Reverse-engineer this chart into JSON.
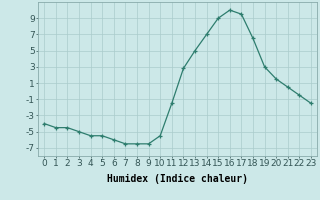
{
  "x": [
    0,
    1,
    2,
    3,
    4,
    5,
    6,
    7,
    8,
    9,
    10,
    11,
    12,
    13,
    14,
    15,
    16,
    17,
    18,
    19,
    20,
    21,
    22,
    23
  ],
  "y": [
    -4.0,
    -4.5,
    -4.5,
    -5.0,
    -5.5,
    -5.5,
    -6.0,
    -6.5,
    -6.5,
    -6.5,
    -5.5,
    -1.5,
    2.8,
    5.0,
    7.0,
    9.0,
    10.0,
    9.5,
    6.5,
    3.0,
    1.5,
    0.5,
    -0.5,
    -1.5
  ],
  "xlabel": "Humidex (Indice chaleur)",
  "ylabel": "",
  "title": "",
  "xlim": [
    -0.5,
    23.5
  ],
  "ylim": [
    -8,
    11
  ],
  "yticks": [
    -7,
    -5,
    -3,
    -1,
    1,
    3,
    5,
    7,
    9
  ],
  "xticks": [
    0,
    1,
    2,
    3,
    4,
    5,
    6,
    7,
    8,
    9,
    10,
    11,
    12,
    13,
    14,
    15,
    16,
    17,
    18,
    19,
    20,
    21,
    22,
    23
  ],
  "xtick_labels": [
    "0",
    "1",
    "2",
    "3",
    "4",
    "5",
    "6",
    "7",
    "8",
    "9",
    "10",
    "11",
    "12",
    "13",
    "14",
    "15",
    "16",
    "17",
    "18",
    "19",
    "20",
    "21",
    "22",
    "23"
  ],
  "line_color": "#2e7d6e",
  "marker": "+",
  "bg_color": "#cce8e8",
  "grid_color": "#aacccc",
  "xlabel_fontsize": 7,
  "tick_fontsize": 6.5
}
